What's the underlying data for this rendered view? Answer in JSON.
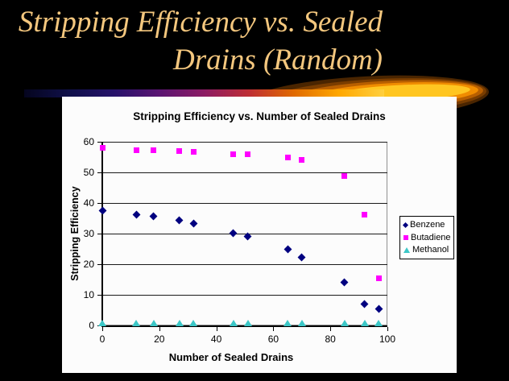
{
  "slide": {
    "background": "#000000",
    "title_line1": "Stripping Efficiency vs. Sealed",
    "title_line2": "Drains (Random)",
    "title_color": "#F4C77E",
    "swoosh_ring_colors": [
      "#4A2500",
      "#7A3D00",
      "#B85F00",
      "#F08C00",
      "#FFC621"
    ],
    "swoosh_bar_gradient": [
      "#05051E",
      "#10104A",
      "#26126A",
      "#5A1472",
      "#8C1B64",
      "#BE2D34",
      "#E06A00",
      "#FFA800",
      "#FFD040"
    ]
  },
  "chart_data": {
    "type": "scatter",
    "title": "Stripping Efficiency vs. Number of Sealed Drains",
    "xlabel": "Number of Sealed Drains",
    "ylabel": "Stripping Efficiency",
    "xlim": [
      0,
      100
    ],
    "ylim": [
      0,
      60
    ],
    "x_ticks": [
      0,
      20,
      40,
      60,
      80,
      100
    ],
    "y_ticks": [
      0,
      10,
      20,
      30,
      40,
      50,
      60
    ],
    "grid": "horizontal gridlines every 10",
    "legend_position": "right",
    "plot_background": "#FFFFFF",
    "x": [
      0,
      12,
      18,
      27,
      32,
      46,
      51,
      65,
      70,
      85,
      92,
      97
    ],
    "series": [
      {
        "name": "Benzene",
        "marker": "diamond",
        "color": "#000080",
        "values": [
          37.5,
          36.3,
          35.7,
          34.3,
          33.4,
          30.1,
          29.1,
          25.0,
          22.2,
          14.0,
          7.0,
          5.5
        ]
      },
      {
        "name": "Butadiene",
        "marker": "square",
        "color": "#FF00FF",
        "values": [
          58.0,
          57.2,
          57.2,
          57.0,
          56.6,
          56.0,
          56.0,
          55.0,
          54.0,
          48.8,
          36.2,
          15.5
        ]
      },
      {
        "name": "Methanol",
        "marker": "triangle",
        "color": "#3CC7C7",
        "values": [
          0,
          0,
          0,
          0,
          0,
          0,
          0,
          0,
          0,
          0,
          0,
          0
        ]
      }
    ]
  }
}
